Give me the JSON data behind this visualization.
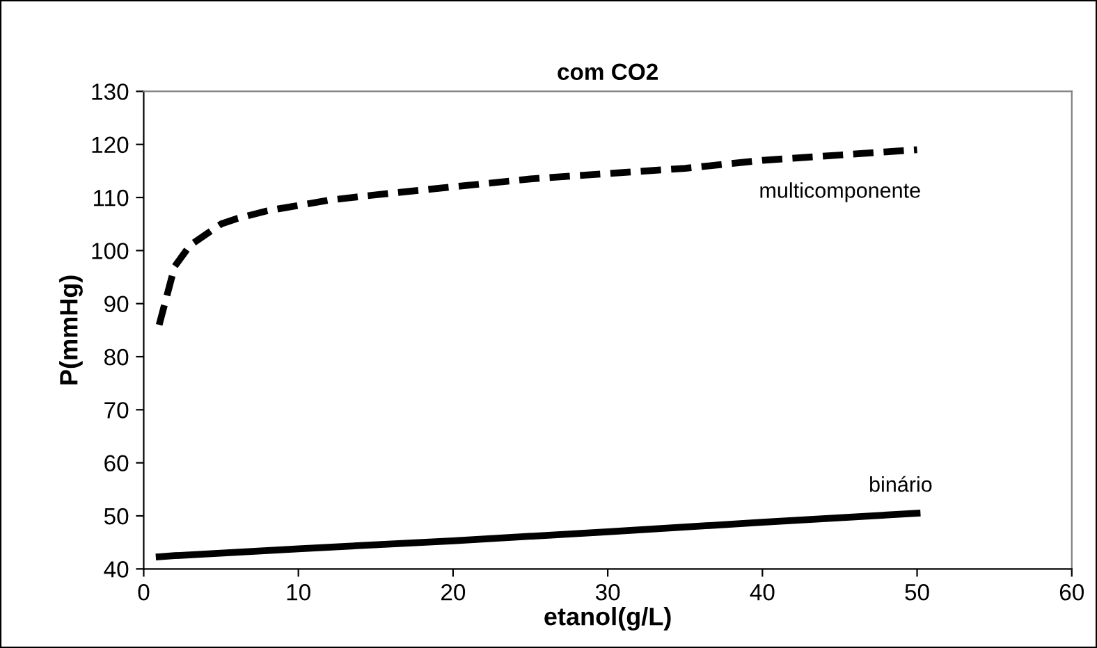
{
  "chart_data": {
    "type": "line",
    "title": "com CO2",
    "xlabel": "etanol(g/L)",
    "ylabel": "P(mmHg)",
    "xlim": [
      0,
      60
    ],
    "xticks": [
      0,
      10,
      20,
      30,
      40,
      50,
      60
    ],
    "ylim": [
      40,
      130
    ],
    "yticks": [
      40,
      50,
      60,
      70,
      80,
      90,
      100,
      110,
      120,
      130
    ],
    "grid": false,
    "legend": false,
    "marker": "none",
    "series": [
      {
        "name": "multicomponente",
        "color": "#000000",
        "line_style": "dashed",
        "x": [
          1,
          2,
          3,
          4,
          5,
          6,
          8,
          10,
          12,
          15,
          20,
          25,
          30,
          35,
          40,
          45,
          50
        ],
        "values": [
          86,
          97,
          101,
          103,
          105,
          106,
          107.5,
          108.5,
          109.5,
          110.5,
          112,
          113.5,
          114.5,
          115.5,
          117,
          118,
          119
        ]
      },
      {
        "name": "binário",
        "color": "#000000",
        "line_style": "solid",
        "x": [
          1,
          2,
          10,
          20,
          30,
          40,
          50
        ],
        "values": [
          42.3,
          42.5,
          43.8,
          45.3,
          47,
          48.8,
          50.5
        ]
      }
    ]
  }
}
